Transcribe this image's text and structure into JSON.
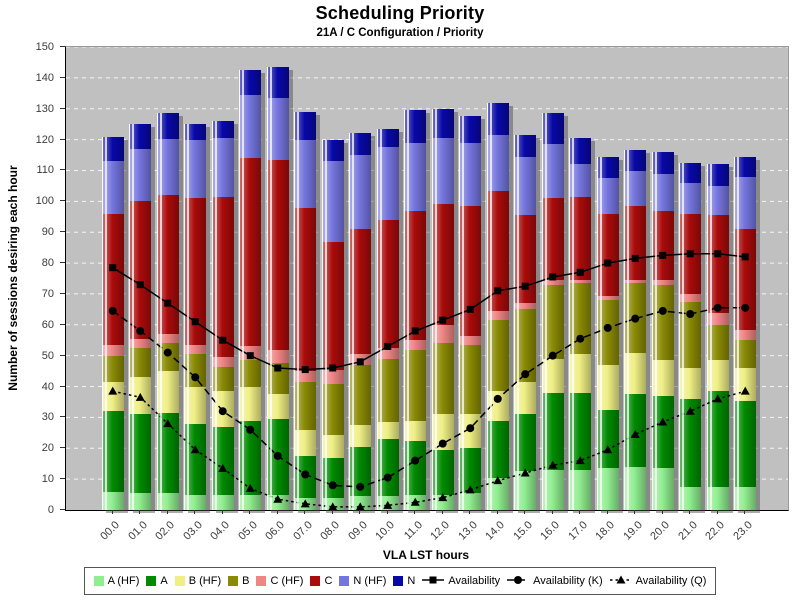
{
  "chart_data": {
    "type": "bar",
    "stacked": true,
    "title": "Scheduling Priority",
    "subtitle": "21A / C Configuration /  Priority",
    "xlabel": "VLA LST hours",
    "ylabel": "Number of sessions desiring each hour",
    "ylim": [
      0,
      150
    ],
    "ytick_step": 10,
    "grid": "horizontal-dashed-white",
    "plot_bg": "#C0C0C0",
    "legend_position": "bottom",
    "categories": [
      "00.0",
      "01.0",
      "02.0",
      "03.0",
      "04.0",
      "05.0",
      "06.0",
      "07.0",
      "08.0",
      "09.0",
      "10.0",
      "11.0",
      "12.0",
      "13.0",
      "14.0",
      "15.0",
      "16.0",
      "17.0",
      "18.0",
      "19.0",
      "20.0",
      "21.0",
      "22.0",
      "23.0"
    ],
    "bar_series": [
      {
        "name": "A (HF)",
        "color": "#90EE90",
        "values": [
          6,
          5.5,
          5.5,
          5,
          5,
          5,
          5,
          4,
          4,
          4.5,
          4.5,
          5,
          5,
          5.5,
          10.5,
          12.5,
          13,
          13,
          13.5,
          14,
          13.5,
          7.5,
          7.5,
          7.5
        ]
      },
      {
        "name": "A",
        "color": "#008B00",
        "values": [
          26,
          25.5,
          26,
          23,
          22,
          24,
          24.5,
          13.5,
          13,
          16,
          18.5,
          17.5,
          14.5,
          14.5,
          18.5,
          18.5,
          25,
          25,
          19,
          23.5,
          23.5,
          28.5,
          31,
          28
        ]
      },
      {
        "name": "B (HF)",
        "color": "#EFEF85",
        "values": [
          9.5,
          12,
          13.5,
          12,
          11.5,
          11,
          8,
          8.5,
          7.5,
          7,
          5.5,
          6.5,
          11.5,
          11,
          9.5,
          10.5,
          11,
          12.5,
          14.5,
          13.5,
          11.5,
          10,
          10,
          10.5
        ]
      },
      {
        "name": "B",
        "color": "#8A8A05",
        "values": [
          8.5,
          9.5,
          9,
          10.5,
          8,
          8.5,
          10,
          15.5,
          16.5,
          19.5,
          20.5,
          23,
          23,
          22.5,
          23,
          23.5,
          24,
          23,
          21,
          22.5,
          24.5,
          21.5,
          11.5,
          9
        ]
      },
      {
        "name": "C (HF)",
        "color": "#EF8585",
        "values": [
          3.5,
          3,
          3,
          3,
          3,
          4.5,
          4.5,
          3.5,
          4.5,
          3.5,
          3.5,
          3,
          6,
          3,
          3,
          2,
          1.5,
          1,
          1.5,
          1,
          1.5,
          2.5,
          4,
          3.5
        ]
      },
      {
        "name": "C",
        "color": "#AA0B0B",
        "values": [
          42.5,
          44.5,
          45,
          47.5,
          52,
          61,
          61.5,
          53,
          41.5,
          40.5,
          41.5,
          42,
          39,
          42,
          39,
          28.5,
          26.5,
          27,
          26.5,
          24,
          22.5,
          26,
          31.5,
          32.5
        ]
      },
      {
        "name": "N (HF)",
        "color": "#7575DF",
        "values": [
          17,
          17,
          18,
          19,
          19,
          20.5,
          20,
          22,
          26,
          24,
          23.5,
          22,
          21.5,
          20.5,
          18,
          19,
          17.5,
          10.5,
          11.5,
          11.5,
          12,
          10,
          9.5,
          17
        ]
      },
      {
        "name": "N",
        "color": "#0808A8",
        "values": [
          8,
          8,
          8.5,
          5,
          5.5,
          8,
          10,
          9,
          7,
          7,
          6,
          10.5,
          9.5,
          8.5,
          10.5,
          7,
          10,
          8.5,
          7,
          6.5,
          7,
          6.5,
          7,
          6.5
        ]
      }
    ],
    "line_series": [
      {
        "name": "Availability",
        "marker": "square",
        "dash": "solid",
        "color": "#000000",
        "values": [
          78.5,
          73,
          67,
          61,
          55,
          50,
          46,
          45.5,
          46,
          48,
          53,
          58,
          61.5,
          65,
          71,
          72.5,
          75.5,
          77,
          80,
          81.5,
          82.5,
          83,
          83,
          82
        ]
      },
      {
        "name": "Availability (K)",
        "marker": "circle",
        "dash": "dashed",
        "color": "#000000",
        "values": [
          64.5,
          58,
          51,
          43,
          32,
          26,
          17.5,
          11.5,
          8,
          7.5,
          10.5,
          16,
          21.5,
          26.5,
          36,
          44,
          50,
          55.5,
          59,
          62,
          64.5,
          63.5,
          65.5,
          65.5
        ]
      },
      {
        "name": "Availability (Q)",
        "marker": "triangle",
        "dash": "dotted",
        "color": "#000000",
        "values": [
          38.5,
          36.5,
          28,
          19.5,
          13.5,
          7,
          3.5,
          2,
          1,
          1,
          1.5,
          2.5,
          4,
          6.5,
          9.5,
          12,
          14.5,
          16,
          19.5,
          24.5,
          28.5,
          32,
          36,
          38.5
        ]
      }
    ]
  }
}
